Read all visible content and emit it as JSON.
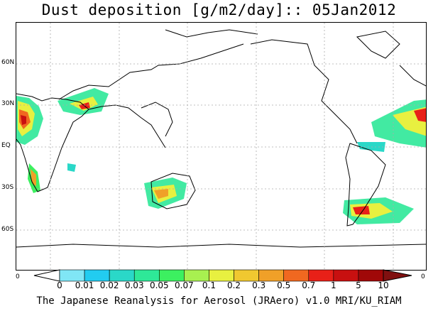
{
  "title": "Dust deposition [g/m2/day]:: 05Jan2012",
  "lat_labels": [
    "60N",
    "30N",
    "EQ",
    "30S",
    "60S"
  ],
  "colorbar": {
    "labels": [
      "0",
      "0.01",
      "0.02",
      "0.03",
      "0.05",
      "0.07",
      "0.1",
      "0.2",
      "0.3",
      "0.5",
      "0.7",
      "1",
      "5",
      "10"
    ],
    "colors": [
      "#ffffff",
      "#80e6f5",
      "#22ccf0",
      "#2ad8c8",
      "#2ee898",
      "#3cf060",
      "#a8f050",
      "#e8f040",
      "#f0c830",
      "#f0a028",
      "#f06820",
      "#e82018",
      "#c81010",
      "#a00808",
      "#801010"
    ]
  },
  "corner_labels": {
    "left": "0",
    "right": "0"
  },
  "credit": "The Japanese Reanalysis for Aerosol (JRAero) v1.0 MRI/KU_RIAM"
}
